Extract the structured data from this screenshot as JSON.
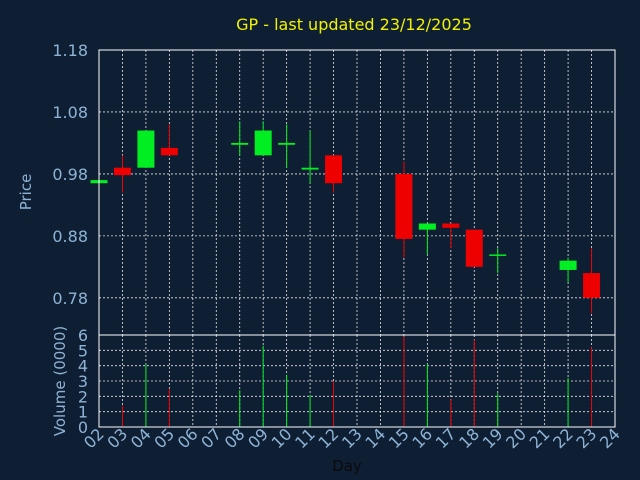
{
  "chart_data": [
    {
      "type": "candlestick",
      "title": "GP - last updated 23/12/2025",
      "ylabel": "Price",
      "ylim": [
        0.72,
        1.18
      ],
      "yticks": [
        "1.18",
        "1.08",
        "0.98",
        "0.88",
        "0.78"
      ],
      "grid": true,
      "up_color": "#00ee22",
      "down_color": "#ee0000",
      "candles": [
        {
          "day": "02",
          "open": 0.965,
          "high": 0.97,
          "low": 0.96,
          "close": 0.97
        },
        {
          "day": "03",
          "open": 0.99,
          "high": 1.01,
          "low": 0.95,
          "close": 0.978
        },
        {
          "day": "04",
          "open": 0.99,
          "high": 1.05,
          "low": 0.99,
          "close": 1.05
        },
        {
          "day": "05",
          "open": 1.022,
          "high": 1.06,
          "low": 1.01,
          "close": 1.01
        },
        {
          "day": "08",
          "open": 1.027,
          "high": 1.065,
          "low": 1.01,
          "close": 1.03
        },
        {
          "day": "09",
          "open": 1.01,
          "high": 1.065,
          "low": 1.01,
          "close": 1.05
        },
        {
          "day": "10",
          "open": 1.027,
          "high": 1.06,
          "low": 0.99,
          "close": 1.03
        },
        {
          "day": "11",
          "open": 0.987,
          "high": 1.05,
          "low": 0.965,
          "close": 0.99
        },
        {
          "day": "12",
          "open": 1.01,
          "high": 1.01,
          "low": 0.95,
          "close": 0.965
        },
        {
          "day": "15",
          "open": 0.98,
          "high": 1.0,
          "low": 0.845,
          "close": 0.875
        },
        {
          "day": "16",
          "open": 0.89,
          "high": 0.9,
          "low": 0.85,
          "close": 0.9
        },
        {
          "day": "17",
          "open": 0.9,
          "high": 0.9,
          "low": 0.86,
          "close": 0.893
        },
        {
          "day": "18",
          "open": 0.89,
          "high": 0.89,
          "low": 0.83,
          "close": 0.83
        },
        {
          "day": "19",
          "open": 0.848,
          "high": 0.86,
          "low": 0.82,
          "close": 0.85
        },
        {
          "day": "22",
          "open": 0.825,
          "high": 0.845,
          "low": 0.805,
          "close": 0.84
        },
        {
          "day": "23",
          "open": 0.82,
          "high": 0.86,
          "low": 0.755,
          "close": 0.78
        }
      ]
    },
    {
      "type": "bar",
      "ylabel": "Volume (0000)",
      "xlabel": "Day",
      "ylim": [
        0,
        6
      ],
      "yticks": [
        "0",
        "1",
        "2",
        "3",
        "4",
        "5",
        "6"
      ],
      "categories": [
        "02",
        "03",
        "04",
        "05",
        "06",
        "07",
        "08",
        "09",
        "10",
        "11",
        "12",
        "13",
        "14",
        "15",
        "16",
        "17",
        "18",
        "19",
        "20",
        "21",
        "22",
        "23",
        "24"
      ],
      "bars": [
        {
          "day": "03",
          "value": 1.4,
          "color": "#ee0000"
        },
        {
          "day": "04",
          "value": 4.1,
          "color": "#00ee22"
        },
        {
          "day": "05",
          "value": 2.5,
          "color": "#ee0000"
        },
        {
          "day": "08",
          "value": 2.4,
          "color": "#00ee22"
        },
        {
          "day": "09",
          "value": 5.3,
          "color": "#00ee22"
        },
        {
          "day": "10",
          "value": 3.4,
          "color": "#00ee22"
        },
        {
          "day": "11",
          "value": 2.1,
          "color": "#00ee22"
        },
        {
          "day": "12",
          "value": 3.0,
          "color": "#ee0000"
        },
        {
          "day": "15",
          "value": 5.9,
          "color": "#ee0000"
        },
        {
          "day": "16",
          "value": 4.1,
          "color": "#00ee22"
        },
        {
          "day": "17",
          "value": 1.8,
          "color": "#ee0000"
        },
        {
          "day": "18",
          "value": 5.7,
          "color": "#ee0000"
        },
        {
          "day": "19",
          "value": 2.2,
          "color": "#00ee22"
        },
        {
          "day": "22",
          "value": 3.2,
          "color": "#00ee22"
        },
        {
          "day": "23",
          "value": 5.2,
          "color": "#ee0000"
        }
      ]
    }
  ]
}
